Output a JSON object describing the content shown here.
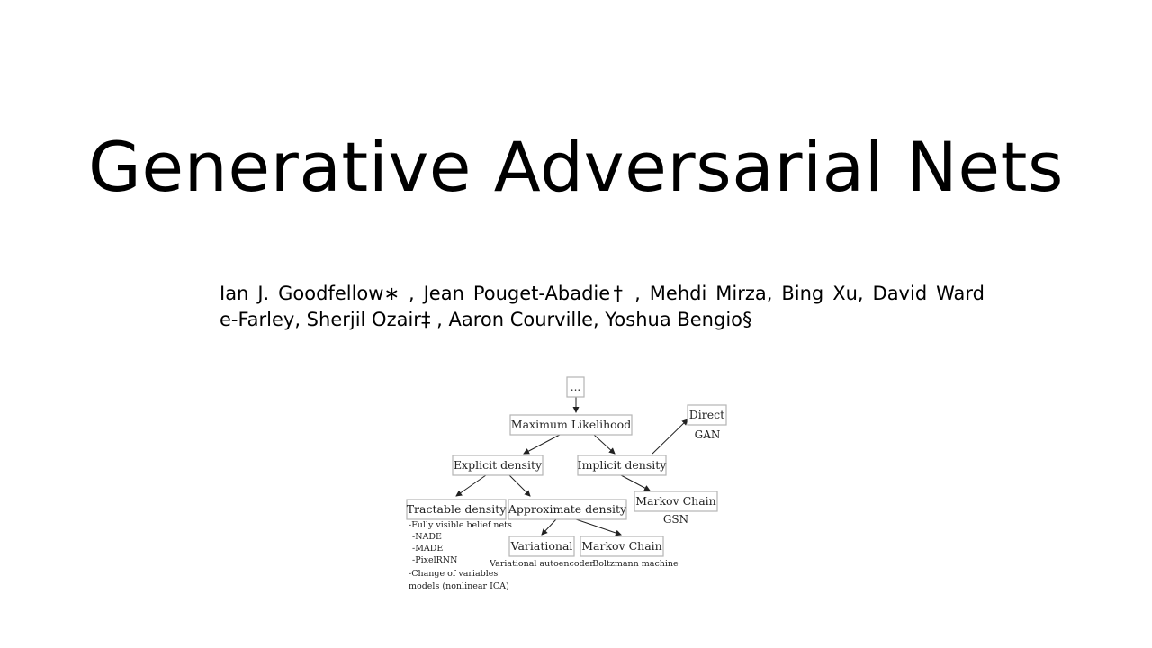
{
  "slide": {
    "title": "Generative Adversarial Nets",
    "authors_line1": "Ian J. Goodfellow∗ , Jean Pouget-Abadie† , Mehdi Mirza, Bing Xu, David Ward",
    "authors_line2": "e-Farley, Sherjil Ozair‡ , Aaron Courville, Yoshua Bengio§"
  },
  "taxonomy": {
    "root": "...",
    "max_likelihood": "Maximum Likelihood",
    "explicit": "Explicit density",
    "implicit": "Implicit density",
    "direct": "Direct",
    "direct_note": "GAN",
    "tractable": "Tractable density",
    "tractable_notes": [
      "-Fully visible belief nets",
      "-NADE",
      "-MADE",
      "-PixelRNN",
      "-Change of variables",
      "models (nonlinear ICA)"
    ],
    "approximate": "Approximate density",
    "markov_implicit": "Markov Chain",
    "markov_implicit_note": "GSN",
    "variational": "Variational",
    "variational_note": "Variational autoencoder",
    "markov_explicit": "Markov Chain",
    "markov_explicit_note": "Boltzmann machine"
  }
}
